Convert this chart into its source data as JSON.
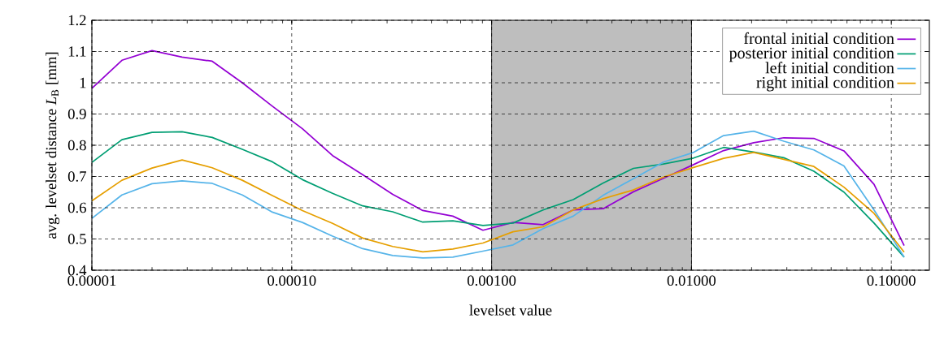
{
  "chart_data": {
    "type": "line",
    "xlabel": "levelset value",
    "ylabel": "avg. levelset distance *L*$_{B}$ [mm]",
    "log": "x",
    "x": [
      1e-05,
      1.414e-05,
      2e-05,
      2.828e-05,
      4e-05,
      5.657e-05,
      8e-05,
      0.0001131,
      0.00016,
      0.0002263,
      0.00032,
      0.0004525,
      0.00064,
      0.0009051,
      0.00128,
      0.00181,
      0.00256,
      0.00362,
      0.00512,
      0.00724,
      0.01024,
      0.01448,
      0.02048,
      0.02896,
      0.04096,
      0.05793,
      0.08192,
      0.1159
    ],
    "series": [
      {
        "name": "frontal initial condition",
        "color": "#9400d3",
        "values": [
          0.982,
          1.072,
          1.103,
          1.082,
          1.069,
          1.0,
          0.925,
          0.853,
          0.767,
          0.706,
          0.643,
          0.591,
          0.573,
          0.528,
          0.553,
          0.546,
          0.593,
          0.597,
          0.651,
          0.694,
          0.738,
          0.783,
          0.808,
          0.824,
          0.822,
          0.782,
          0.675,
          0.479
        ]
      },
      {
        "name": "posterior initial condition",
        "color": "#009e73",
        "values": [
          0.745,
          0.818,
          0.841,
          0.843,
          0.825,
          0.787,
          0.747,
          0.69,
          0.646,
          0.606,
          0.587,
          0.554,
          0.558,
          0.543,
          0.551,
          0.593,
          0.626,
          0.679,
          0.726,
          0.74,
          0.759,
          0.793,
          0.778,
          0.76,
          0.717,
          0.65,
          0.551,
          0.442
        ]
      },
      {
        "name": "left initial condition",
        "color": "#56b4e9",
        "values": [
          0.566,
          0.641,
          0.677,
          0.686,
          0.678,
          0.641,
          0.586,
          0.553,
          0.509,
          0.469,
          0.447,
          0.439,
          0.442,
          0.461,
          0.481,
          0.533,
          0.573,
          0.64,
          0.693,
          0.746,
          0.777,
          0.831,
          0.845,
          0.813,
          0.785,
          0.734,
          0.593,
          0.442
        ]
      },
      {
        "name": "right initial condition",
        "color": "#e69f00",
        "values": [
          0.622,
          0.688,
          0.727,
          0.753,
          0.728,
          0.688,
          0.639,
          0.591,
          0.55,
          0.503,
          0.476,
          0.459,
          0.468,
          0.487,
          0.523,
          0.539,
          0.593,
          0.629,
          0.657,
          0.698,
          0.729,
          0.758,
          0.777,
          0.755,
          0.732,
          0.666,
          0.582,
          0.458
        ]
      }
    ],
    "xlim": [
      1e-05,
      0.155
    ],
    "xticks": [
      {
        "value": 1e-05,
        "label": "0.00001"
      },
      {
        "value": 0.0001,
        "label": "0.00010"
      },
      {
        "value": 0.001,
        "label": "0.00100"
      },
      {
        "value": 0.01,
        "label": "0.01000"
      },
      {
        "value": 0.1,
        "label": "0.10000"
      }
    ],
    "ylim": [
      0.4,
      1.2
    ],
    "yticks": [
      0.4,
      0.5,
      0.6,
      0.7,
      0.8,
      0.9,
      1,
      1.1,
      1.2
    ],
    "bands": [
      {
        "axis": "x",
        "from": 0.001,
        "to": 0.01,
        "color": "#bebebe"
      }
    ],
    "grid": true,
    "legend": "top right",
    "line_style": "solid",
    "marker": "none"
  }
}
